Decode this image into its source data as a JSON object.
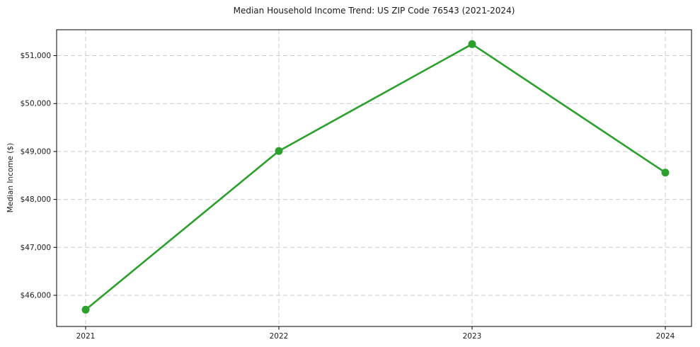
{
  "figure": {
    "background": "#ffffff"
  },
  "chart_data": {
    "type": "line",
    "title": "Median Household Income Trend: US ZIP Code 76543 (2021-2024)",
    "xlabel": "",
    "ylabel": "Median Income ($)",
    "x": [
      2021,
      2022,
      2023,
      2024
    ],
    "values": [
      45700,
      49010,
      51240,
      48560
    ],
    "series": [
      {
        "name": "Median Household Income",
        "values": [
          45700,
          49010,
          51240,
          48560
        ]
      }
    ],
    "xtick_labels": [
      "2021",
      "2022",
      "2023",
      "2024"
    ],
    "yticks": [
      46000,
      47000,
      48000,
      49000,
      50000,
      51000
    ],
    "ytick_labels": [
      "$46,000",
      "$47,000",
      "$48,000",
      "$49,000",
      "$50,000",
      "$51,000"
    ],
    "ylim": [
      45350,
      51540
    ],
    "grid": true,
    "grid_style": "dashed",
    "legend": false,
    "marker": "circle",
    "colors": {
      "line": "#2ca02c",
      "marker": "#2ca02c",
      "grid": "#cccccc",
      "axis": "#000000",
      "text": "#1a1a1a"
    }
  }
}
